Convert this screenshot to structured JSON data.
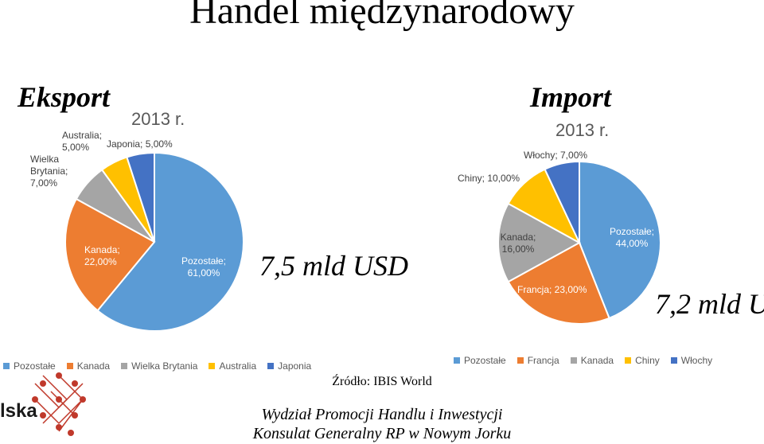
{
  "title": "Handel międzynarodowy",
  "source": "Źródło: IBIS World",
  "footer": {
    "line1": "Wydział Promocji Handlu i Inwestycji",
    "line2": "Konsulat Generalny RP w Nowym Jorku"
  },
  "logo_text": "lska",
  "colors": {
    "blue": "#5B9BD5",
    "orange": "#ED7D31",
    "gray": "#A5A5A5",
    "yellow": "#FFC000",
    "darkblue": "#4472C4",
    "logo_red": "#c0392b"
  },
  "chart_data": [
    {
      "type": "pie",
      "section_title": "Eksport",
      "title": "2013 r.",
      "total": "7,5 mld USD",
      "legend_position": "bottom",
      "slices": [
        {
          "name": "Pozostałe",
          "value": 61.0,
          "label": "Pozostałe;\n61,00%",
          "color": "#5B9BD5"
        },
        {
          "name": "Kanada",
          "value": 22.0,
          "label": "Kanada;\n22,00%",
          "color": "#ED7D31"
        },
        {
          "name": "Wielka Brytania",
          "value": 7.0,
          "label": "Wielka\nBrytania;\n7,00%",
          "color": "#A5A5A5"
        },
        {
          "name": "Australia",
          "value": 5.0,
          "label": "Australia;\n5,00%",
          "color": "#FFC000"
        },
        {
          "name": "Japonia",
          "value": 5.0,
          "label": "Japonia; 5,00%",
          "color": "#4472C4"
        }
      ]
    },
    {
      "type": "pie",
      "section_title": "Import",
      "title": "2013 r.",
      "total": "7,2 mld U",
      "legend_position": "bottom",
      "slices": [
        {
          "name": "Pozostałe",
          "value": 44.0,
          "label": "Pozostałe;\n44,00%",
          "color": "#5B9BD5"
        },
        {
          "name": "Francja",
          "value": 23.0,
          "label": "Francja; 23,00%",
          "color": "#ED7D31"
        },
        {
          "name": "Kanada",
          "value": 16.0,
          "label": "Kanada;\n16,00%",
          "color": "#A5A5A5"
        },
        {
          "name": "Chiny",
          "value": 10.0,
          "label": "Chiny; 10,00%",
          "color": "#FFC000"
        },
        {
          "name": "Włochy",
          "value": 7.0,
          "label": "Włochy; 7,00%",
          "color": "#4472C4"
        }
      ]
    }
  ]
}
